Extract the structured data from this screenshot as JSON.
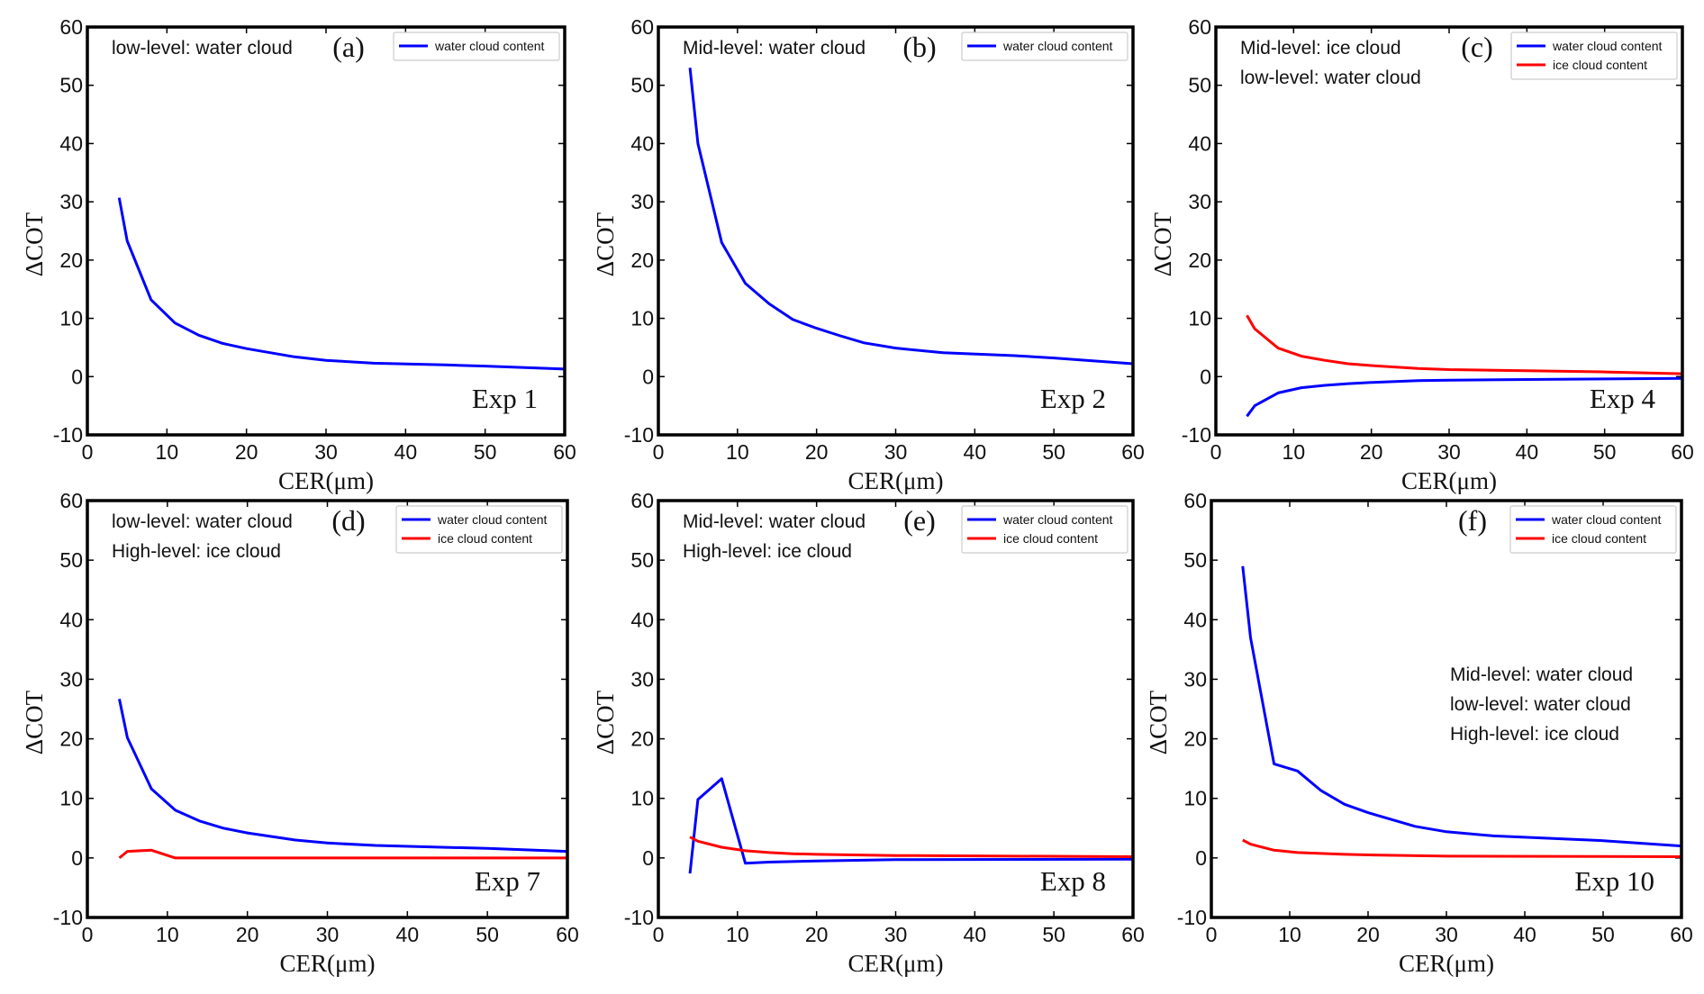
{
  "colors": {
    "water": "#0000ff",
    "ice": "#ff0000",
    "frame": "#000000"
  },
  "chart_data": [
    {
      "type": "line",
      "panel_label": "(a)",
      "experiment": "Exp 1",
      "annotations": [
        "low-level: water cloud"
      ],
      "xlabel": "CER(μm)",
      "ylabel": "ΔCOT",
      "xlim": [
        0,
        60
      ],
      "ylim": [
        -10,
        60
      ],
      "xticks": [
        "0",
        "10",
        "20",
        "30",
        "40",
        "50",
        "60"
      ],
      "yticks": [
        "-10",
        "0",
        "10",
        "20",
        "30",
        "40",
        "50",
        "60"
      ],
      "legend_position": "top-right",
      "series": [
        {
          "name": "water cloud content",
          "color": "water",
          "x": [
            4,
            5,
            8,
            11,
            14,
            17,
            20,
            26,
            30,
            36,
            45,
            50,
            60
          ],
          "y": [
            30.7,
            23.3,
            13.2,
            9.2,
            7.1,
            5.7,
            4.8,
            3.4,
            2.8,
            2.3,
            2.0,
            1.8,
            1.3
          ]
        }
      ]
    },
    {
      "type": "line",
      "panel_label": "(b)",
      "experiment": "Exp 2",
      "annotations": [
        "Mid-level: water cloud"
      ],
      "xlabel": "CER(μm)",
      "ylabel": "ΔCOT",
      "xlim": [
        0,
        60
      ],
      "ylim": [
        -10,
        60
      ],
      "xticks": [
        "0",
        "10",
        "20",
        "30",
        "40",
        "50",
        "60"
      ],
      "yticks": [
        "-10",
        "0",
        "10",
        "20",
        "30",
        "40",
        "50",
        "60"
      ],
      "legend_position": "top-right",
      "series": [
        {
          "name": "water cloud content",
          "color": "water",
          "x": [
            4,
            5,
            8,
            11,
            14,
            17,
            20,
            23,
            26,
            30,
            36,
            45,
            50,
            60
          ],
          "y": [
            53,
            40,
            23,
            16,
            12.5,
            9.8,
            8.3,
            7.0,
            5.8,
            4.9,
            4.1,
            3.6,
            3.2,
            2.2
          ]
        }
      ]
    },
    {
      "type": "line",
      "panel_label": "(c)",
      "experiment": "Exp 4",
      "annotations": [
        "Mid-level: ice cloud",
        "low-level: water cloud"
      ],
      "xlabel": "CER(μm)",
      "ylabel": "ΔCOT",
      "xlim": [
        0,
        60
      ],
      "ylim": [
        -10,
        60
      ],
      "xticks": [
        "0",
        "10",
        "20",
        "30",
        "40",
        "50",
        "60"
      ],
      "yticks": [
        "-10",
        "0",
        "10",
        "20",
        "30",
        "40",
        "50",
        "60"
      ],
      "legend_position": "top-right",
      "series": [
        {
          "name": "water cloud content",
          "color": "water",
          "x": [
            4,
            5,
            8,
            11,
            14,
            17,
            20,
            26,
            30,
            40,
            60
          ],
          "y": [
            -6.8,
            -5.0,
            -2.8,
            -1.9,
            -1.5,
            -1.2,
            -1.0,
            -0.7,
            -0.6,
            -0.5,
            -0.3
          ]
        },
        {
          "name": "ice cloud content",
          "color": "ice",
          "x": [
            4,
            5,
            8,
            11,
            14,
            17,
            20,
            26,
            30,
            40,
            50,
            60
          ],
          "y": [
            10.5,
            8.2,
            4.9,
            3.5,
            2.8,
            2.2,
            1.9,
            1.4,
            1.2,
            1.0,
            0.8,
            0.5
          ]
        }
      ]
    },
    {
      "type": "line",
      "panel_label": "(d)",
      "experiment": "Exp 7",
      "annotations": [
        "low-level: water cloud",
        "High-level: ice cloud"
      ],
      "xlabel": "CER(μm)",
      "ylabel": "ΔCOT",
      "xlim": [
        0,
        60
      ],
      "ylim": [
        -10,
        60
      ],
      "xticks": [
        "0",
        "10",
        "20",
        "30",
        "40",
        "50",
        "60"
      ],
      "yticks": [
        "-10",
        "0",
        "10",
        "20",
        "30",
        "40",
        "50",
        "60"
      ],
      "legend_position": "top-right",
      "series": [
        {
          "name": "water cloud content",
          "color": "water",
          "x": [
            4,
            5,
            8,
            11,
            14,
            17,
            20,
            26,
            30,
            36,
            50,
            60
          ],
          "y": [
            26.7,
            20.2,
            11.6,
            8.0,
            6.2,
            5.0,
            4.2,
            3.0,
            2.5,
            2.1,
            1.6,
            1.1
          ]
        },
        {
          "name": "ice cloud content",
          "color": "ice",
          "x": [
            4,
            5,
            8,
            11,
            14,
            20,
            30,
            60
          ],
          "y": [
            0,
            1.1,
            1.3,
            0,
            0,
            0,
            0,
            0
          ]
        }
      ]
    },
    {
      "type": "line",
      "panel_label": "(e)",
      "experiment": "Exp 8",
      "annotations": [
        "Mid-level: water cloud",
        "High-level: ice cloud"
      ],
      "xlabel": "CER(μm)",
      "ylabel": "ΔCOT",
      "xlim": [
        0,
        60
      ],
      "ylim": [
        -10,
        60
      ],
      "xticks": [
        "0",
        "10",
        "20",
        "30",
        "40",
        "50",
        "60"
      ],
      "yticks": [
        "-10",
        "0",
        "10",
        "20",
        "30",
        "40",
        "50",
        "60"
      ],
      "legend_position": "top-right",
      "series": [
        {
          "name": "water cloud content",
          "color": "water",
          "x": [
            4,
            5,
            8,
            11,
            14,
            20,
            30,
            60
          ],
          "y": [
            -2.6,
            9.8,
            13.3,
            -0.9,
            -0.7,
            -0.5,
            -0.3,
            -0.2
          ]
        },
        {
          "name": "ice cloud content",
          "color": "ice",
          "x": [
            4,
            5,
            8,
            11,
            14,
            17,
            20,
            30,
            60
          ],
          "y": [
            3.5,
            2.8,
            1.8,
            1.2,
            0.9,
            0.7,
            0.6,
            0.4,
            0.2
          ]
        }
      ]
    },
    {
      "type": "line",
      "panel_label": "(f)",
      "experiment": "Exp 10",
      "annotations": [
        "Mid-level: water cloud",
        "low-level: water cloud",
        "High-level: ice cloud"
      ],
      "xlabel": "CER(μm)",
      "ylabel": "ΔCOT",
      "xlim": [
        0,
        60
      ],
      "ylim": [
        -10,
        60
      ],
      "xticks": [
        "0",
        "10",
        "20",
        "30",
        "40",
        "50",
        "60"
      ],
      "yticks": [
        "-10",
        "0",
        "10",
        "20",
        "30",
        "40",
        "50",
        "60"
      ],
      "legend_position": "top-right",
      "series": [
        {
          "name": "water cloud content",
          "color": "water",
          "x": [
            4,
            5,
            8,
            11,
            14,
            17,
            20,
            26,
            30,
            36,
            50,
            60
          ],
          "y": [
            49,
            37,
            15.8,
            14.6,
            11.3,
            9.0,
            7.6,
            5.3,
            4.4,
            3.7,
            2.9,
            2.0
          ]
        },
        {
          "name": "ice cloud content",
          "color": "ice",
          "x": [
            4,
            5,
            8,
            11,
            17,
            20,
            30,
            60
          ],
          "y": [
            3.0,
            2.3,
            1.3,
            0.9,
            0.6,
            0.5,
            0.3,
            0.2
          ]
        }
      ]
    }
  ]
}
